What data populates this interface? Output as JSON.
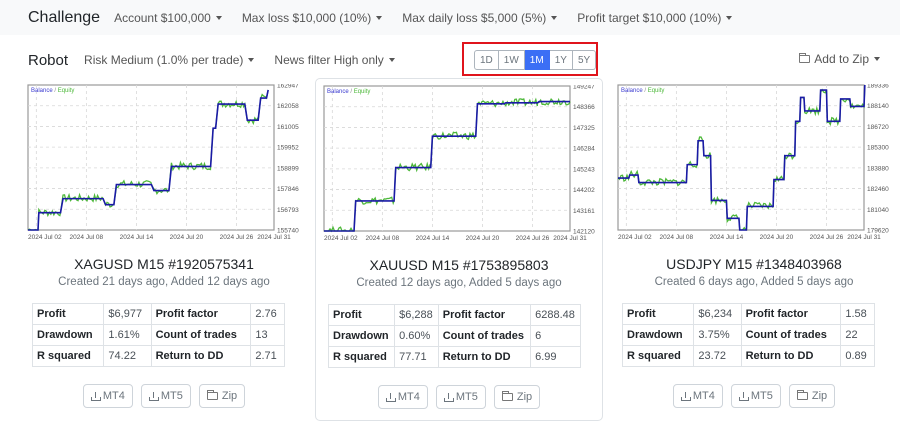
{
  "challenge": {
    "title": "Challenge",
    "account": "Account $100,000",
    "max_loss": "Max loss $10,000 (10%)",
    "max_daily_loss": "Max daily loss $5,000 (5%)",
    "profit_target": "Profit target $10,000 (10%)"
  },
  "robot": {
    "title": "Robot",
    "risk": "Risk Medium (1.0% per trade)",
    "news_filter": "News filter High only",
    "periods": [
      "1D",
      "1W",
      "1M",
      "1Y",
      "5Y"
    ],
    "active_period": "1M",
    "add_to_zip": "Add to Zip"
  },
  "colors": {
    "balance": "#1a1aa6",
    "equity": "#4db83a",
    "active_period": "#3b6ff5",
    "highlight_border": "#e0141c"
  },
  "cards": [
    {
      "title": "XAGUSD M15 #1920575341",
      "subtitle": "Created 21 days ago, Added 12 days ago",
      "stats": [
        {
          "k1": "Profit",
          "v1": "$6,977",
          "k2": "Profit factor",
          "v2": "2.76"
        },
        {
          "k1": "Drawdown",
          "v1": "1.61%",
          "k2": "Count of trades",
          "v2": "13"
        },
        {
          "k1": "R squared",
          "v1": "74.22",
          "k2": "Return to DD",
          "v2": "2.71"
        }
      ],
      "buttons": [
        "MT4",
        "MT5",
        "Zip"
      ]
    },
    {
      "title": "XAUUSD M15 #1753895803",
      "subtitle": "Created 12 days ago, Added 5 days ago",
      "stats": [
        {
          "k1": "Profit",
          "v1": "$6,288",
          "k2": "Profit factor",
          "v2": "6288.48"
        },
        {
          "k1": "Drawdown",
          "v1": "0.60%",
          "k2": "Count of trades",
          "v2": "6"
        },
        {
          "k1": "R squared",
          "v1": "77.71",
          "k2": "Return to DD",
          "v2": "6.99"
        }
      ],
      "buttons": [
        "MT4",
        "MT5",
        "Zip"
      ]
    },
    {
      "title": "USDJPY M15 #1348403968",
      "subtitle": "Created 6 days ago, Added 5 days ago",
      "stats": [
        {
          "k1": "Profit",
          "v1": "$6,234",
          "k2": "Profit factor",
          "v2": "1.58"
        },
        {
          "k1": "Drawdown",
          "v1": "3.75%",
          "k2": "Count of trades",
          "v2": "22"
        },
        {
          "k1": "R squared",
          "v1": "23.72",
          "k2": "Return to DD",
          "v2": "0.89"
        }
      ],
      "buttons": [
        "MT4",
        "MT5",
        "Zip"
      ]
    }
  ],
  "chart_data": [
    {
      "type": "line",
      "title": "Balance / Equity",
      "legend": [
        "Balance",
        "Equity"
      ],
      "x_ticks": [
        "2024 Jul 02",
        "2024 Jul 08",
        "2024 Jul 14",
        "2024 Jul 20",
        "2024 Jul 26",
        "2024 Jul 31"
      ],
      "y_ticks": [
        155740,
        156793,
        157846,
        158899,
        159952,
        161005,
        162058,
        162947
      ],
      "ylim": [
        155740,
        162947
      ],
      "grid": true,
      "series": [
        {
          "name": "Balance",
          "x": [
            0,
            1.2,
            1.3,
            3.9,
            4.2,
            9.0,
            9.3,
            10.3,
            10.6,
            14.8,
            15.1,
            16.9,
            17.2,
            21.9,
            22.2,
            22.5,
            22.8,
            26.0,
            26.3,
            27.6,
            27.9,
            28.6,
            28.8
          ],
          "values": [
            155740,
            155740,
            156600,
            156600,
            157300,
            157300,
            157000,
            157000,
            158000,
            158000,
            157700,
            157700,
            158900,
            158900,
            160800,
            160800,
            162000,
            162000,
            161200,
            161200,
            162300,
            162300,
            162700
          ]
        },
        {
          "name": "Equity",
          "values_approx": "fluctuates around balance, peak 162947 near Jul 30"
        }
      ]
    },
    {
      "type": "line",
      "title": "Balance / Equity",
      "legend": [
        "Balance",
        "Equity"
      ],
      "x_ticks": [
        "2024 Jul 02",
        "2024 Jul 08",
        "2024 Jul 14",
        "2024 Jul 20",
        "2024 Jul 26",
        "2024 Jul 31"
      ],
      "y_ticks": [
        142120,
        143161,
        144202,
        145243,
        146284,
        147325,
        148366,
        149247
      ],
      "ylim": [
        142120,
        149247
      ],
      "grid": true,
      "series": [
        {
          "name": "Balance",
          "x": [
            0,
            3.6,
            3.8,
            8.4,
            8.6,
            12.8,
            13.0,
            18.2,
            18.4,
            21.6,
            21.8,
            25.6,
            25.8,
            29.5
          ],
          "values": [
            142120,
            142120,
            143600,
            143600,
            145240,
            145240,
            146780,
            146780,
            148370,
            148370,
            148420,
            148420,
            148480,
            148480
          ]
        },
        {
          "name": "Equity",
          "values_approx": "rises ahead of balance, peak 149247 near Jul 22 and Jul 25"
        }
      ]
    },
    {
      "type": "line",
      "title": "Balance / Equity",
      "legend": [
        "Balance",
        "Equity"
      ],
      "x_ticks": [
        "2024 Jul 02",
        "2024 Jul 08",
        "2024 Jul 14",
        "2024 Jul 20",
        "2024 Jul 26",
        "2024 Jul 31"
      ],
      "y_ticks": [
        179620,
        181040,
        182460,
        183880,
        185300,
        186720,
        188140,
        189336
      ],
      "ylim": [
        179620,
        189336
      ],
      "grid": true,
      "series": [
        {
          "name": "Balance",
          "x": [
            0,
            1.3,
            1.4,
            2.4,
            2.5,
            8.2,
            8.3,
            9.5,
            9.6,
            10.2,
            10.3,
            11.1,
            11.2,
            13.0,
            13.1,
            14.5,
            14.6,
            15.4,
            15.5,
            18.6,
            18.7,
            19.9,
            20.0,
            21.2,
            21.3,
            21.8,
            21.9,
            22.3,
            22.4,
            24.2,
            24.3,
            25.0,
            25.1,
            26.6,
            26.7,
            27.8,
            27.9,
            29.5,
            29.6
          ],
          "values": [
            183100,
            183100,
            183300,
            183300,
            182800,
            182800,
            184000,
            184000,
            185600,
            185600,
            184600,
            184600,
            181600,
            181600,
            180400,
            180400,
            179620,
            179620,
            181200,
            181200,
            183000,
            183000,
            184600,
            184600,
            186900,
            186900,
            188500,
            188500,
            187600,
            187600,
            189000,
            189000,
            186900,
            186900,
            188400,
            188400,
            187900,
            187900,
            189336
          ]
        },
        {
          "name": "Equity",
          "values_approx": "tracks balance with noise, peak 189336 at Jul 31"
        }
      ]
    }
  ]
}
